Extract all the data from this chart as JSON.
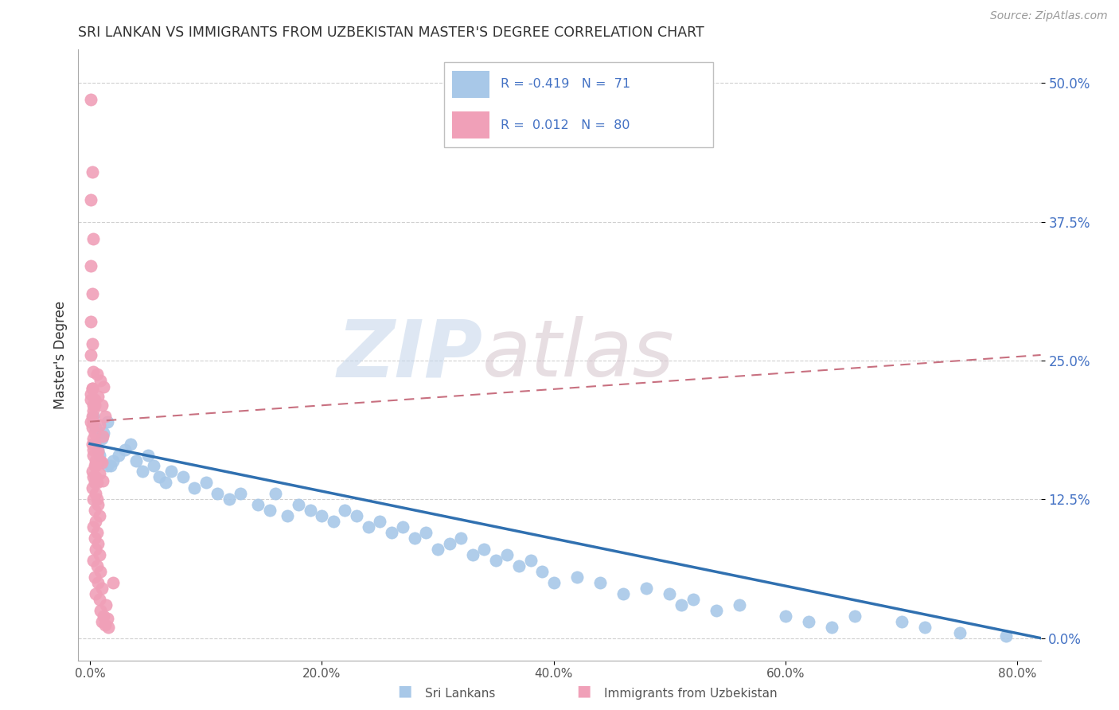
{
  "title": "SRI LANKAN VS IMMIGRANTS FROM UZBEKISTAN MASTER'S DEGREE CORRELATION CHART",
  "source": "Source: ZipAtlas.com",
  "ylabel": "Master's Degree",
  "xlim": [
    -0.01,
    0.82
  ],
  "ylim": [
    -0.02,
    0.53
  ],
  "x_ticks": [
    0.0,
    0.2,
    0.4,
    0.6,
    0.8
  ],
  "y_ticks": [
    0.0,
    0.125,
    0.25,
    0.375,
    0.5
  ],
  "x_tick_labels": [
    "0.0%",
    "20.0%",
    "40.0%",
    "60.0%",
    "80.0%"
  ],
  "y_tick_labels": [
    "0.0%",
    "12.5%",
    "25.0%",
    "37.5%",
    "50.0%"
  ],
  "sri_lanka_color": "#a8c8e8",
  "uzbekistan_color": "#f0a0b8",
  "sri_lanka_line_color": "#3070b0",
  "uzbekistan_line_color": "#c87080",
  "text_color": "#4472c4",
  "title_color": "#333333",
  "grid_color": "#d0d0d0",
  "watermark_zip_color": "#c8d8ec",
  "watermark_atlas_color": "#d8c8d0",
  "legend_border_color": "#c0c0c0",
  "sri_lanka_R": -0.419,
  "sri_lanka_N": 71,
  "uzbekistan_R": 0.012,
  "uzbekistan_N": 80,
  "sl_x": [
    0.005,
    0.015,
    0.008,
    0.012,
    0.003,
    0.018,
    0.007,
    0.02,
    0.01,
    0.025,
    0.015,
    0.005,
    0.03,
    0.04,
    0.035,
    0.045,
    0.05,
    0.06,
    0.055,
    0.07,
    0.065,
    0.08,
    0.09,
    0.1,
    0.11,
    0.12,
    0.13,
    0.145,
    0.155,
    0.17,
    0.16,
    0.18,
    0.19,
    0.2,
    0.21,
    0.22,
    0.23,
    0.24,
    0.25,
    0.26,
    0.27,
    0.28,
    0.29,
    0.3,
    0.31,
    0.32,
    0.33,
    0.34,
    0.35,
    0.36,
    0.37,
    0.38,
    0.39,
    0.4,
    0.42,
    0.44,
    0.46,
    0.48,
    0.5,
    0.51,
    0.52,
    0.54,
    0.56,
    0.6,
    0.62,
    0.64,
    0.66,
    0.7,
    0.72,
    0.75,
    0.79
  ],
  "sl_y": [
    0.175,
    0.195,
    0.165,
    0.185,
    0.2,
    0.155,
    0.17,
    0.16,
    0.18,
    0.165,
    0.155,
    0.19,
    0.17,
    0.16,
    0.175,
    0.15,
    0.165,
    0.145,
    0.155,
    0.15,
    0.14,
    0.145,
    0.135,
    0.14,
    0.13,
    0.125,
    0.13,
    0.12,
    0.115,
    0.11,
    0.13,
    0.12,
    0.115,
    0.11,
    0.105,
    0.115,
    0.11,
    0.1,
    0.105,
    0.095,
    0.1,
    0.09,
    0.095,
    0.08,
    0.085,
    0.09,
    0.075,
    0.08,
    0.07,
    0.075,
    0.065,
    0.07,
    0.06,
    0.05,
    0.055,
    0.05,
    0.04,
    0.045,
    0.04,
    0.03,
    0.035,
    0.025,
    0.03,
    0.02,
    0.015,
    0.01,
    0.02,
    0.015,
    0.01,
    0.005,
    0.002
  ],
  "uz_x": [
    0.001,
    0.002,
    0.001,
    0.003,
    0.001,
    0.002,
    0.001,
    0.002,
    0.001,
    0.003,
    0.002,
    0.001,
    0.003,
    0.002,
    0.001,
    0.003,
    0.002,
    0.004,
    0.003,
    0.002,
    0.004,
    0.003,
    0.002,
    0.001,
    0.004,
    0.003,
    0.005,
    0.004,
    0.002,
    0.005,
    0.003,
    0.006,
    0.004,
    0.002,
    0.005,
    0.006,
    0.003,
    0.007,
    0.004,
    0.008,
    0.005,
    0.003,
    0.006,
    0.004,
    0.007,
    0.005,
    0.008,
    0.003,
    0.006,
    0.009,
    0.004,
    0.007,
    0.01,
    0.005,
    0.008,
    0.003,
    0.006,
    0.009,
    0.004,
    0.007,
    0.01,
    0.005,
    0.008,
    0.011,
    0.006,
    0.009,
    0.012,
    0.007,
    0.01,
    0.013,
    0.008,
    0.011,
    0.014,
    0.009,
    0.012,
    0.015,
    0.01,
    0.013,
    0.016,
    0.02
  ],
  "uz_y": [
    0.485,
    0.42,
    0.395,
    0.36,
    0.335,
    0.31,
    0.285,
    0.265,
    0.255,
    0.24,
    0.225,
    0.215,
    0.21,
    0.2,
    0.195,
    0.195,
    0.19,
    0.185,
    0.18,
    0.175,
    0.215,
    0.205,
    0.225,
    0.22,
    0.21,
    0.165,
    0.16,
    0.155,
    0.15,
    0.145,
    0.145,
    0.14,
    0.14,
    0.135,
    0.13,
    0.125,
    0.125,
    0.12,
    0.115,
    0.11,
    0.105,
    0.1,
    0.095,
    0.09,
    0.085,
    0.08,
    0.075,
    0.07,
    0.065,
    0.06,
    0.055,
    0.05,
    0.045,
    0.04,
    0.035,
    0.17,
    0.165,
    0.16,
    0.175,
    0.168,
    0.158,
    0.155,
    0.148,
    0.142,
    0.238,
    0.232,
    0.226,
    0.218,
    0.21,
    0.2,
    0.192,
    0.182,
    0.03,
    0.025,
    0.02,
    0.018,
    0.015,
    0.012,
    0.01,
    0.05
  ]
}
